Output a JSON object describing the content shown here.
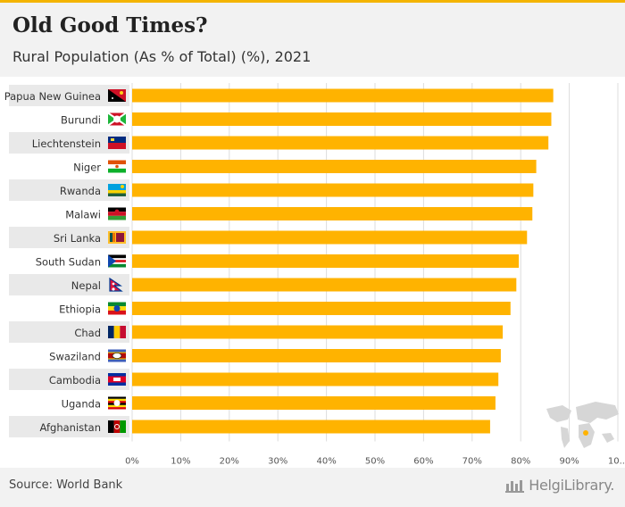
{
  "header": {
    "title": "Old Good Times?",
    "subtitle": "Rural Population (As % of Total) (%), 2021"
  },
  "footer": {
    "source": "Source: World Bank",
    "brand": "HelgiLibrary."
  },
  "colors": {
    "bar": "#ffb300",
    "label_bg": "#e9e9e9",
    "grid": "#dddddd"
  },
  "chart_data": {
    "type": "bar",
    "orientation": "horizontal",
    "categories": [
      "Papua New Guinea",
      "Burundi",
      "Liechtenstein",
      "Niger",
      "Rwanda",
      "Malawi",
      "Sri Lanka",
      "South Sudan",
      "Nepal",
      "Ethiopia",
      "Chad",
      "Swaziland",
      "Cambodia",
      "Uganda",
      "Afghanistan"
    ],
    "values": [
      86.7,
      86.3,
      85.7,
      83.2,
      82.6,
      82.4,
      81.3,
      79.6,
      79.1,
      77.9,
      76.3,
      75.9,
      75.4,
      74.8,
      73.7
    ],
    "x_ticks": [
      "0%",
      "10%",
      "20%",
      "30%",
      "40%",
      "50%",
      "60%",
      "70%",
      "80%",
      "90%",
      "10..."
    ],
    "xlim": [
      0,
      100
    ],
    "grid": true,
    "flags": [
      "papua-new-guinea-flag",
      "burundi-flag",
      "liechtenstein-flag",
      "niger-flag",
      "rwanda-flag",
      "malawi-flag",
      "sri-lanka-flag",
      "south-sudan-flag",
      "nepal-flag",
      "ethiopia-flag",
      "chad-flag",
      "swaziland-flag",
      "cambodia-flag",
      "uganda-flag",
      "afghanistan-flag"
    ]
  }
}
